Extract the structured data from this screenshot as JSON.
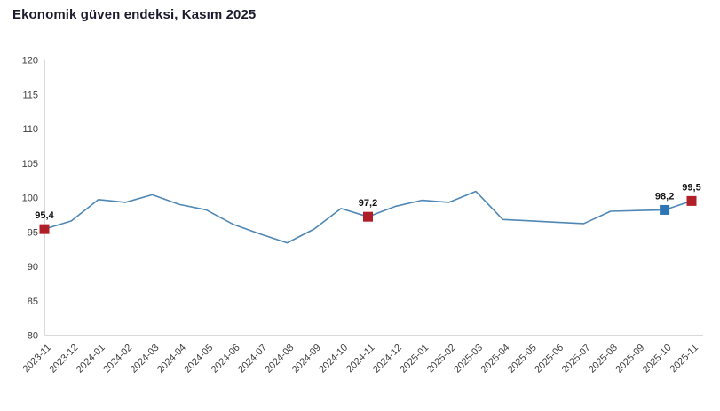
{
  "title": "Ekonomik güven endeksi, Kasım 2025",
  "chart_data": {
    "type": "line",
    "title": "Ekonomik güven endeksi, Kasım 2025",
    "xlabel": "",
    "ylabel": "",
    "grid": false,
    "legend": "none",
    "ylim": [
      80,
      120
    ],
    "yticks": [
      80,
      85,
      90,
      95,
      100,
      105,
      110,
      115,
      120
    ],
    "x": [
      "2023-11",
      "2023-12",
      "2024-01",
      "2024-02",
      "2024-03",
      "2024-04",
      "2024-05",
      "2024-06",
      "2024-07",
      "2024-08",
      "2024-09",
      "2024-10",
      "2024-11",
      "2024-12",
      "2025-01",
      "2025-02",
      "2025-03",
      "2025-04",
      "2025-05",
      "2025-06",
      "2025-07",
      "2025-08",
      "2025-09",
      "2025-10",
      "2025-11"
    ],
    "series": [
      {
        "name": "Ekonomik güven endeksi",
        "values": [
          95.4,
          96.6,
          99.7,
          99.3,
          100.4,
          99.0,
          98.2,
          96.1,
          94.7,
          93.4,
          95.4,
          98.4,
          97.2,
          98.7,
          99.6,
          99.3,
          100.9,
          96.8,
          96.6,
          96.4,
          96.2,
          98.0,
          98.1,
          98.2,
          99.5
        ]
      }
    ],
    "line_color": "#4f87b5",
    "axis_color": "#d9d9d9",
    "highlights": [
      {
        "x": "2023-11",
        "value": 95.4,
        "label": "95,4",
        "color": "#b01e28"
      },
      {
        "x": "2024-11",
        "value": 97.2,
        "label": "97,2",
        "color": "#b01e28"
      },
      {
        "x": "2025-10",
        "value": 98.2,
        "label": "98,2",
        "color": "#2e75b6"
      },
      {
        "x": "2025-11",
        "value": 99.5,
        "label": "99,5",
        "color": "#b01e28"
      }
    ]
  }
}
